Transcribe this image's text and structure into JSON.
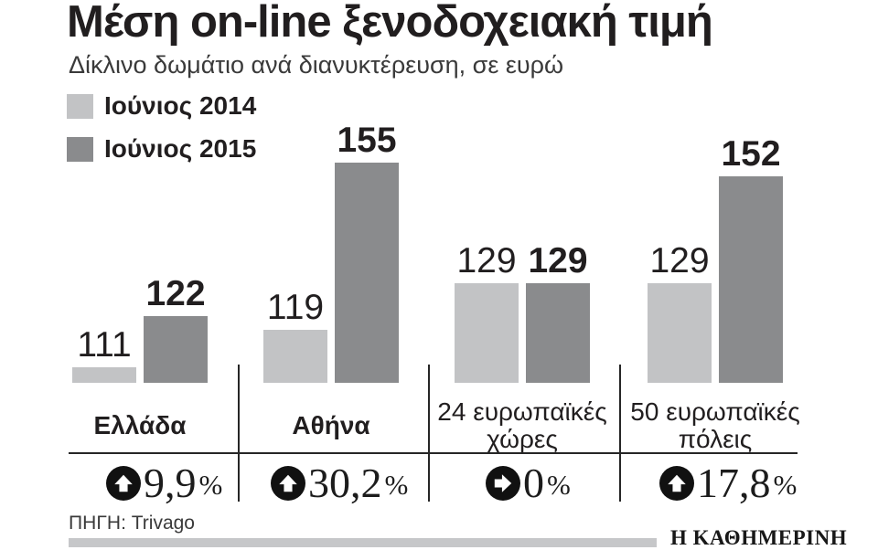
{
  "header": {
    "title": "Μέση on-line ξενοδοχειακή τιμή",
    "subtitle": "Δίκλινο δωμάτιο ανά διανυκτέρευση, σε ευρώ"
  },
  "legend": [
    {
      "label": "Ιούνιος 2014",
      "color": "#c2c3c5"
    },
    {
      "label": "Ιούνιος 2015",
      "color": "#8a8b8d"
    }
  ],
  "chart_data": {
    "type": "bar",
    "title": "Μέση on-line ξενοδοχειακή τιμή",
    "subtitle": "Δίκλινο δωμάτιο ανά διανυκτέρευση, σε ευρώ",
    "unit": "ευρώ",
    "categories": [
      "Ελλάδα",
      "Αθήνα",
      "24 ευρωπαϊκές χώρες",
      "50 ευρωπαϊκές πόλεις"
    ],
    "series": [
      {
        "name": "Ιούνιος 2014",
        "color": "#c2c3c5",
        "values": [
          111,
          119,
          129,
          129
        ]
      },
      {
        "name": "Ιούνιος 2015",
        "color": "#8a8b8d",
        "values": [
          122,
          155,
          129,
          152
        ]
      }
    ],
    "changes": [
      {
        "number": "9,9",
        "suffix": "%",
        "direction": "up"
      },
      {
        "number": "30,2",
        "suffix": "%",
        "direction": "up"
      },
      {
        "number": "0",
        "suffix": "%",
        "direction": "flat"
      },
      {
        "number": "17,8",
        "suffix": "%",
        "direction": "up"
      }
    ],
    "legend_position": "top-left",
    "grid": false,
    "value_axis_visible": false
  },
  "footer": {
    "source": "ΠΗΓΗ: Trivago",
    "logo": "Η ΚΑΘΗΜΕΡΙΝΗ"
  }
}
